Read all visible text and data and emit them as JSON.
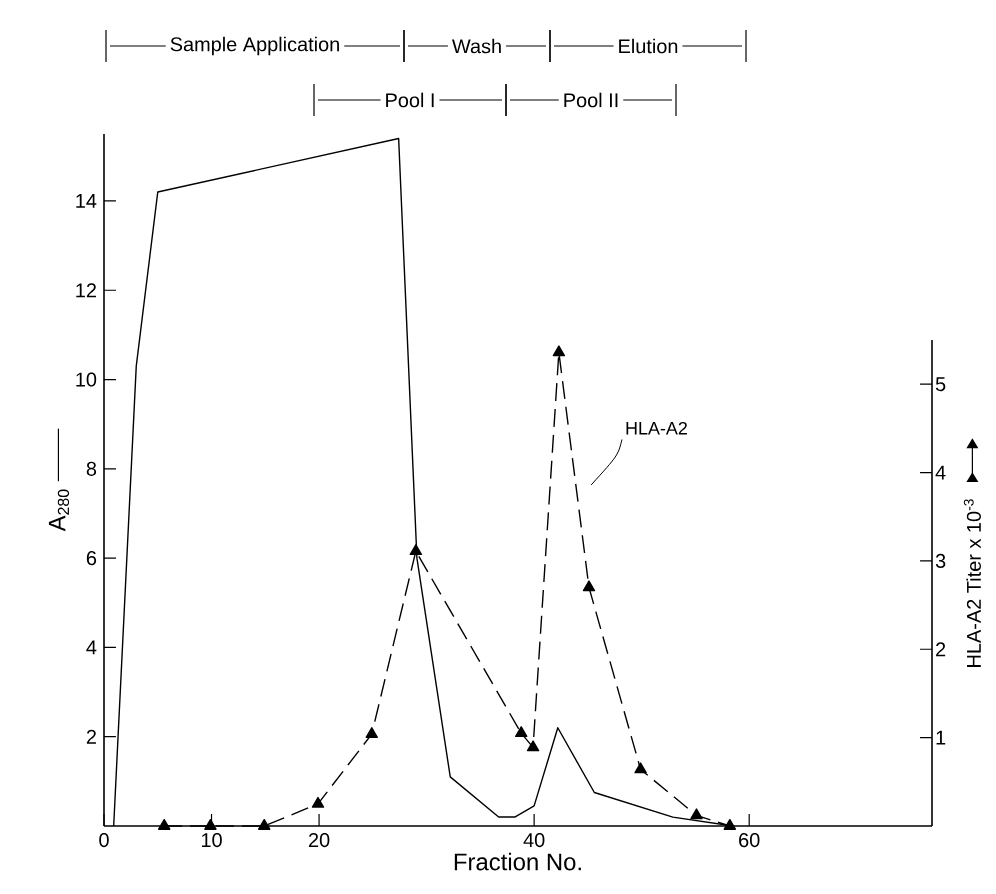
{
  "chart_data": {
    "type": "line",
    "xlabel": "Fraction No.",
    "ylabel": "A$_{280}$",
    "y2label": "HLA-A2 Titer x 10$^{-3}$",
    "xlim": [
      0,
      77
    ],
    "xticks": [
      0,
      10,
      20,
      40,
      60
    ],
    "ylim": [
      0,
      15.5
    ],
    "yticks": [
      2,
      4,
      6,
      8,
      10,
      12,
      14
    ],
    "y2lim": [
      0,
      5.5
    ],
    "y2ticks": [
      1,
      2,
      3,
      4,
      5
    ],
    "series": [
      {
        "color": "#000000",
        "line_style": "solid",
        "marker": "none",
        "x": [
          0.9,
          3.0,
          5.0,
          27.4,
          29.1,
          32.2,
          36.7,
          38.2,
          40.0,
          42.2,
          45.6,
          52.9,
          58.5
        ],
        "values": [
          0,
          10.3,
          14.2,
          15.4,
          6.0,
          1.1,
          0.2,
          0.2,
          0.45,
          2.2,
          0.75,
          0.2,
          0
        ]
      },
      {
        "name": "HLA-A2",
        "axis": "y2",
        "color": "#000000",
        "line_style": "dashed",
        "marker": "triangle",
        "x": [
          5.6,
          9.9,
          14.9,
          19.9,
          24.9,
          29.0,
          38.8,
          39.9,
          42.3,
          45.1,
          49.9,
          55.1,
          58.2
        ],
        "values": [
          0,
          0,
          0,
          0.25,
          1.04,
          3.11,
          1.05,
          0.89,
          5.36,
          2.7,
          0.64,
          0.12,
          0
        ]
      }
    ],
    "annotations": [
      "Sample Application",
      "Wash",
      "Elution",
      "Pool I",
      "Pool II"
    ]
  }
}
